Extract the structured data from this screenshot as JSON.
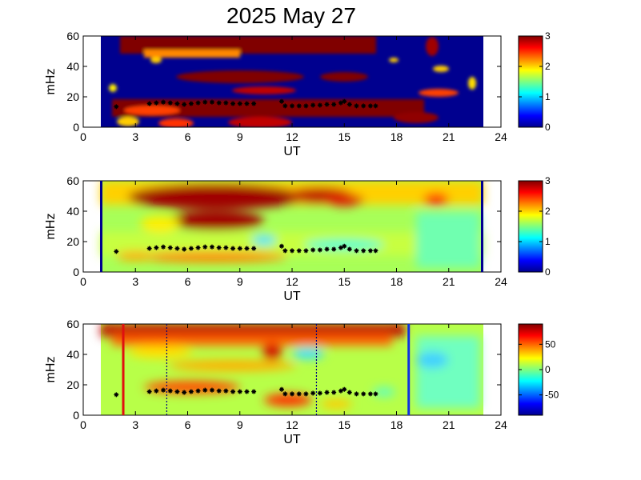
{
  "chart_data": {
    "title": "2025 May 27",
    "type": "heatmap",
    "panels": [
      {
        "id": "panel-1",
        "xlabel": "UT",
        "ylabel": "mHz",
        "xlim": [
          0,
          24
        ],
        "ylim": [
          0,
          60
        ],
        "xticks": [
          "0",
          "3",
          "6",
          "9",
          "12",
          "15",
          "18",
          "21",
          "24"
        ],
        "yticks": [
          "0",
          "20",
          "40",
          "60"
        ],
        "data_range_ut": [
          1,
          23
        ],
        "colorbar": {
          "range": [
            0,
            3
          ],
          "ticks": [
            "0",
            "1",
            "2",
            "3"
          ]
        }
      },
      {
        "id": "panel-2",
        "xlabel": "UT",
        "ylabel": "mHz",
        "xlim": [
          0,
          24
        ],
        "ylim": [
          0,
          60
        ],
        "xticks": [
          "0",
          "3",
          "6",
          "9",
          "12",
          "15",
          "18",
          "21",
          "24"
        ],
        "yticks": [
          "0",
          "20",
          "40",
          "60"
        ],
        "data_range_ut": [
          1,
          23
        ],
        "colorbar": {
          "range": [
            0,
            3
          ],
          "ticks": [
            "0",
            "1",
            "2",
            "3"
          ]
        }
      },
      {
        "id": "panel-3",
        "xlabel": "UT",
        "ylabel": "mHz",
        "xlim": [
          0,
          24
        ],
        "ylim": [
          0,
          60
        ],
        "xticks": [
          "0",
          "3",
          "6",
          "9",
          "12",
          "15",
          "18",
          "21",
          "24"
        ],
        "yticks": [
          "0",
          "20",
          "40",
          "60"
        ],
        "data_range_ut": [
          1,
          23
        ],
        "colorbar": {
          "range": [
            -90,
            90
          ],
          "ticks": [
            "50",
            "0",
            "-50"
          ]
        },
        "vertical_lines": [
          {
            "ut": 2.3,
            "color": "#e01010",
            "style": "solid"
          },
          {
            "ut": 4.8,
            "color": "#000080",
            "style": "dotted"
          },
          {
            "ut": 13.4,
            "color": "#000080",
            "style": "dotted"
          },
          {
            "ut": 18.7,
            "color": "#1030e0",
            "style": "solid"
          }
        ]
      }
    ],
    "marker_series": {
      "description_points_ut_mhz": [
        [
          1.9,
          13.5
        ],
        [
          3.8,
          15.5
        ],
        [
          4.2,
          16
        ],
        [
          4.6,
          16.5
        ],
        [
          5.0,
          16
        ],
        [
          5.4,
          15.5
        ],
        [
          5.8,
          15
        ],
        [
          6.2,
          15.5
        ],
        [
          6.6,
          16
        ],
        [
          7.0,
          16.5
        ],
        [
          7.4,
          16.5
        ],
        [
          7.8,
          16
        ],
        [
          8.2,
          16
        ],
        [
          8.6,
          15.5
        ],
        [
          9.0,
          15.5
        ],
        [
          9.4,
          15.5
        ],
        [
          9.8,
          15.5
        ],
        [
          11.4,
          17
        ],
        [
          11.6,
          14
        ],
        [
          12.0,
          14
        ],
        [
          12.4,
          14
        ],
        [
          12.8,
          14
        ],
        [
          13.2,
          14.5
        ],
        [
          13.6,
          14.5
        ],
        [
          14.0,
          15
        ],
        [
          14.4,
          15
        ],
        [
          14.8,
          16
        ],
        [
          15.0,
          17
        ],
        [
          15.3,
          15
        ],
        [
          15.7,
          14
        ],
        [
          16.1,
          14
        ],
        [
          16.5,
          14
        ],
        [
          16.8,
          14
        ]
      ]
    }
  }
}
